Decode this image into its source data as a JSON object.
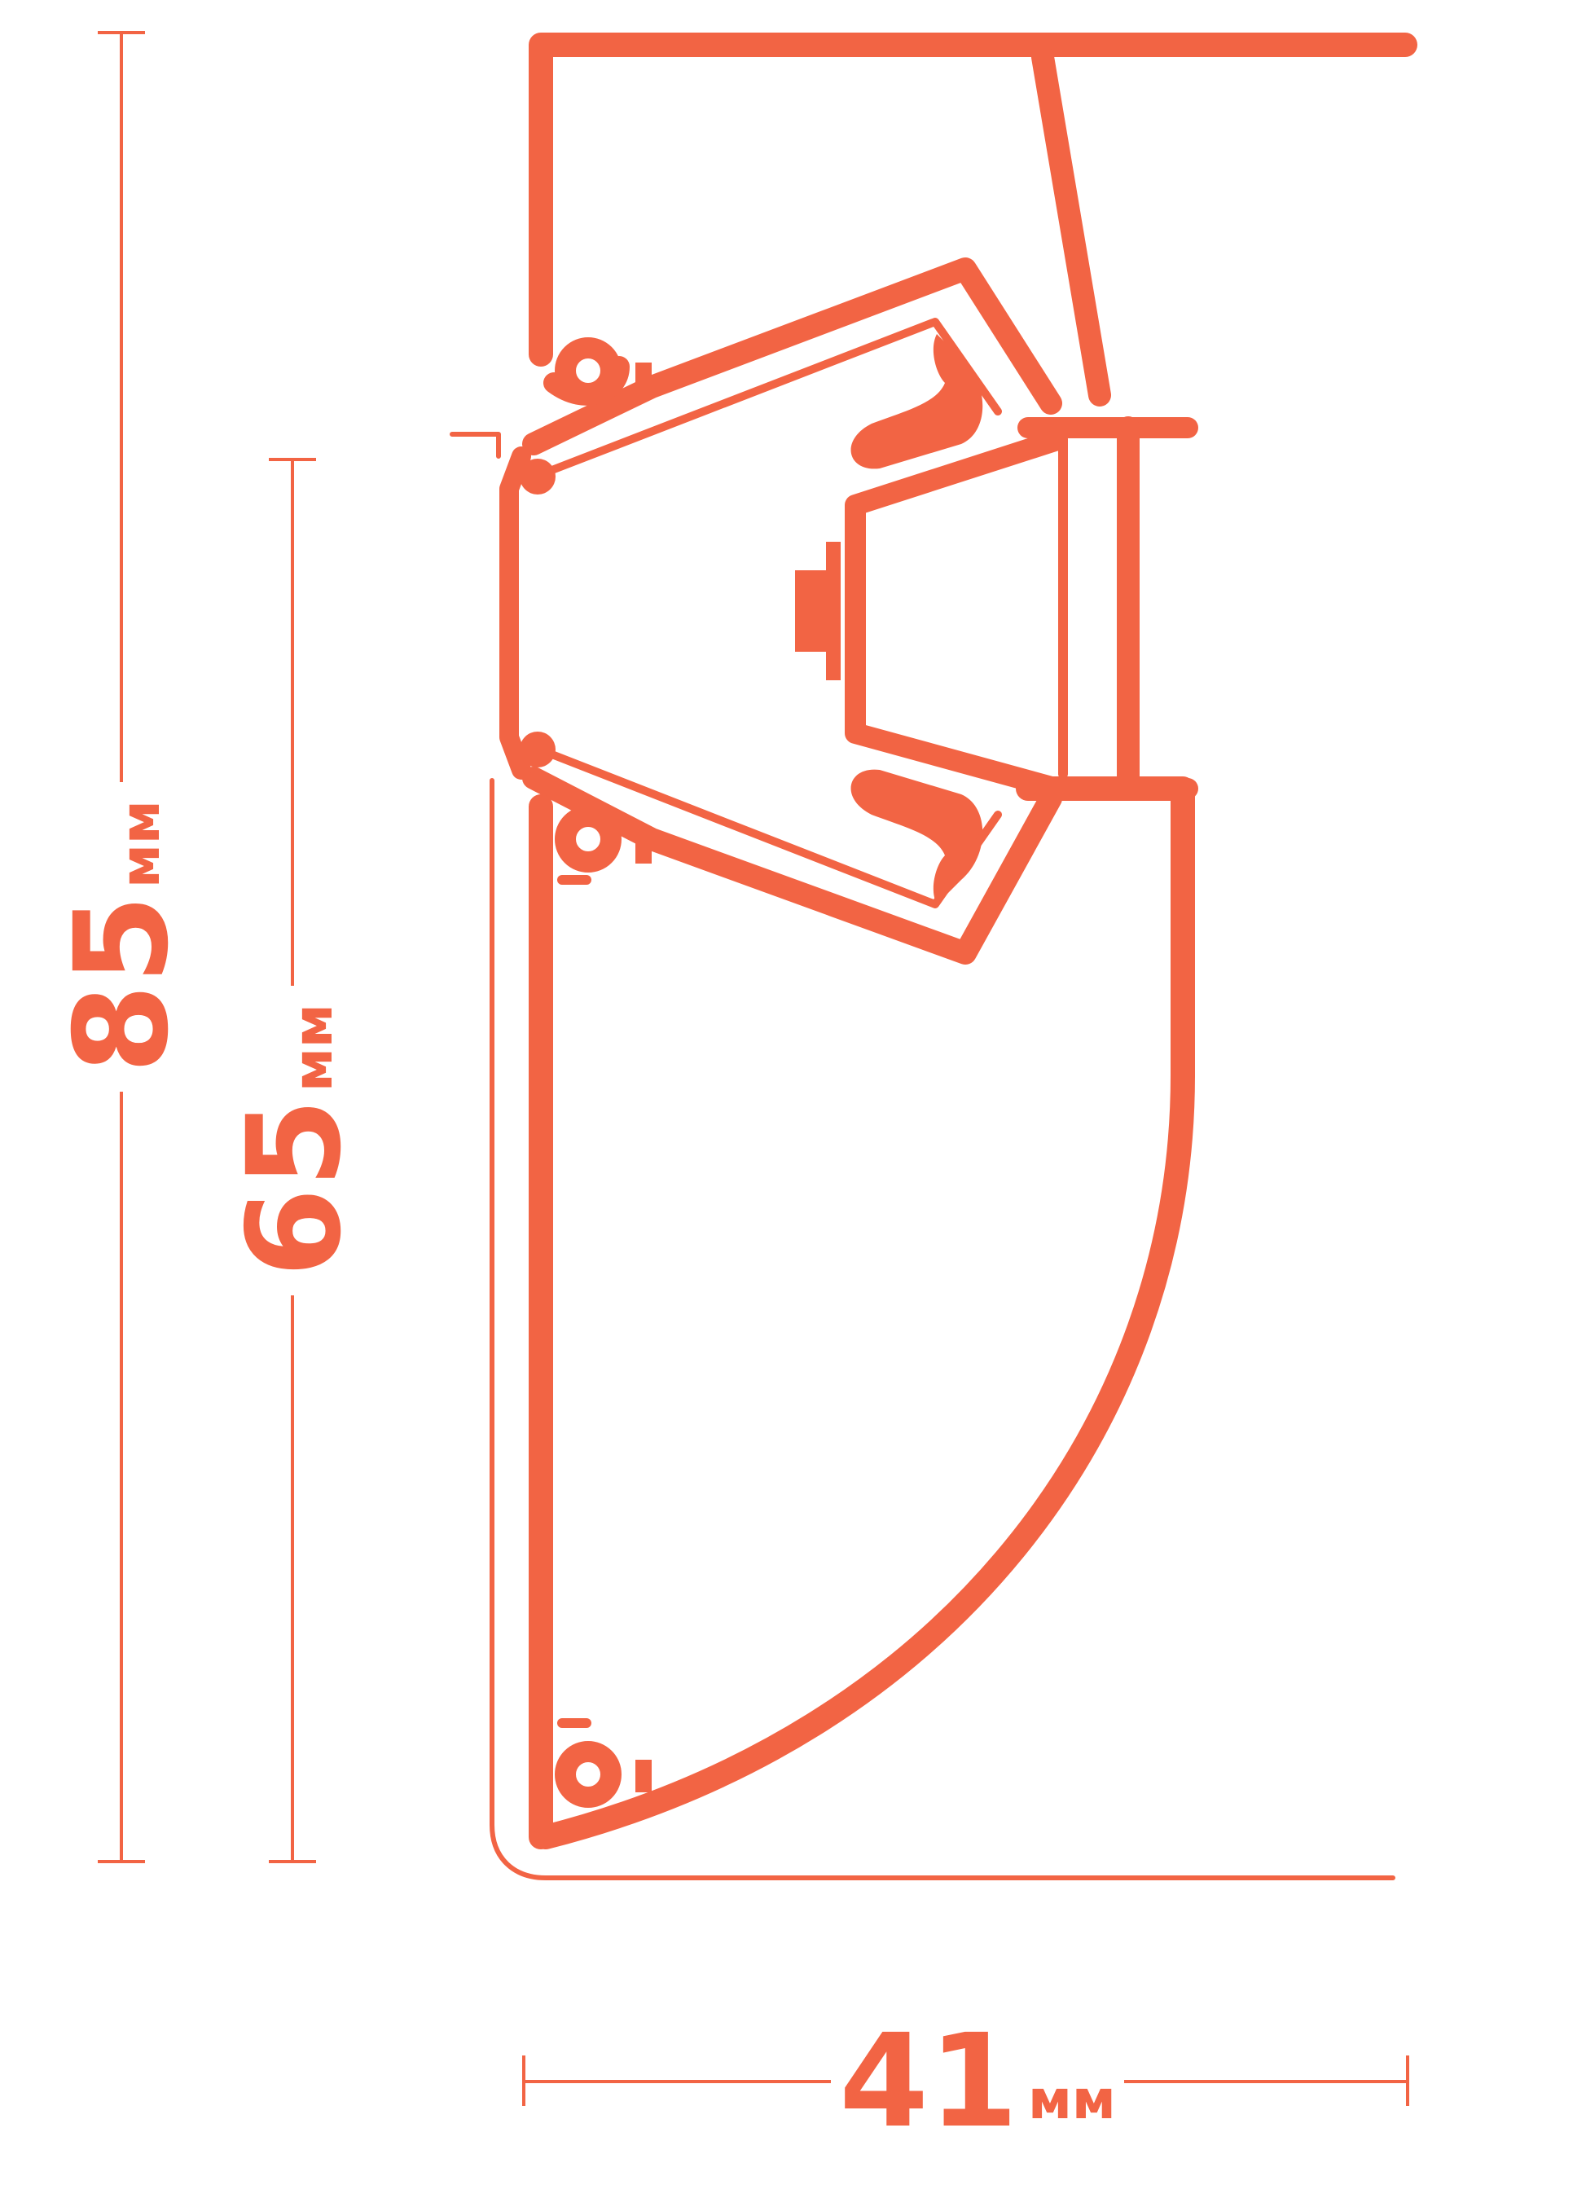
{
  "colors": {
    "accent": "#f26444",
    "background": "#ffffff"
  },
  "dimensions": {
    "total_height": {
      "value": "85",
      "unit": "мм"
    },
    "body_height": {
      "value": "65",
      "unit": "мм"
    },
    "width": {
      "value": "41",
      "unit": "мм"
    }
  }
}
